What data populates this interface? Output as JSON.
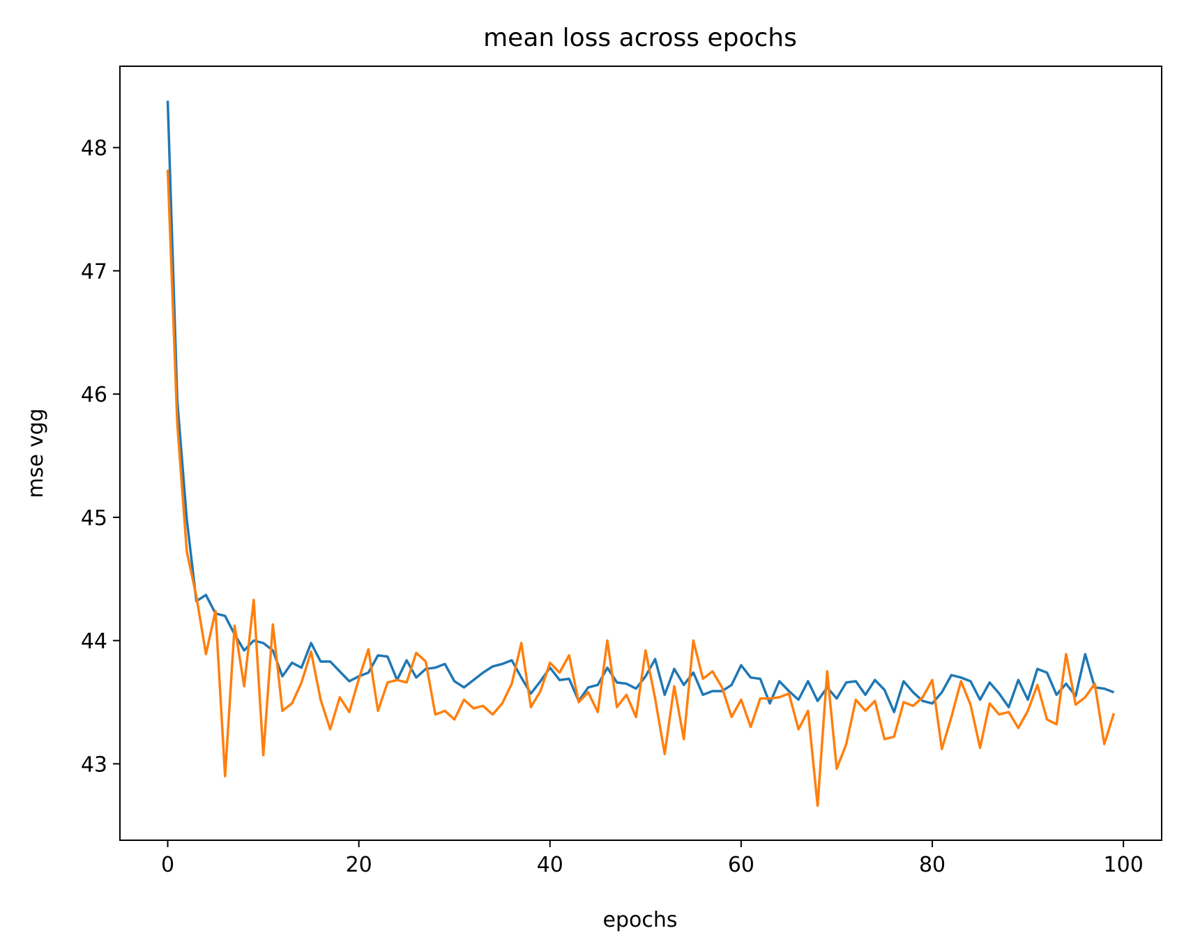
{
  "chart_data": {
    "type": "line",
    "title": "mean loss across epochs",
    "xlabel": "epochs",
    "ylabel": "mse vgg",
    "xlim": [
      -5,
      104
    ],
    "ylim": [
      42.38,
      48.66
    ],
    "xticks": [
      0,
      20,
      40,
      60,
      80,
      100
    ],
    "yticks": [
      43,
      44,
      45,
      46,
      47,
      48
    ],
    "grid": false,
    "colors": {
      "series_1": "#1f77b4",
      "series_2": "#ff7f0e"
    },
    "series": [
      {
        "values": [
          48.38,
          45.95,
          44.98,
          44.32,
          44.37,
          44.22,
          44.2,
          44.05,
          43.92,
          44.0,
          43.98,
          43.92,
          43.71,
          43.82,
          43.78,
          43.98,
          43.83,
          43.83,
          43.75,
          43.67,
          43.71,
          43.74,
          43.88,
          43.87,
          43.68,
          43.84,
          43.7,
          43.77,
          43.78,
          43.81,
          43.67,
          43.62,
          43.68,
          43.74,
          43.79,
          43.81,
          43.84,
          43.7,
          43.57,
          43.67,
          43.78,
          43.68,
          43.69,
          43.51,
          43.62,
          43.64,
          43.78,
          43.66,
          43.65,
          43.61,
          43.71,
          43.85,
          43.56,
          43.77,
          43.64,
          43.74,
          43.56,
          43.59,
          43.59,
          43.64,
          43.8,
          43.7,
          43.69,
          43.49,
          43.67,
          43.59,
          43.52,
          43.67,
          43.51,
          43.62,
          43.53,
          43.66,
          43.67,
          43.56,
          43.68,
          43.6,
          43.42,
          43.67,
          43.58,
          43.51,
          43.49,
          43.58,
          43.72,
          43.7,
          43.67,
          43.52,
          43.66,
          43.57,
          43.46,
          43.68,
          43.52,
          43.77,
          43.74,
          43.56,
          43.65,
          43.55,
          43.89,
          43.62,
          43.61,
          43.58
        ]
      },
      {
        "values": [
          47.82,
          45.76,
          44.72,
          44.36,
          43.89,
          44.24,
          42.9,
          44.12,
          43.63,
          44.33,
          43.07,
          44.13,
          43.43,
          43.49,
          43.66,
          43.91,
          43.52,
          43.28,
          43.54,
          43.42,
          43.69,
          43.93,
          43.43,
          43.66,
          43.68,
          43.66,
          43.9,
          43.83,
          43.4,
          43.43,
          43.36,
          43.52,
          43.45,
          43.47,
          43.4,
          43.49,
          43.65,
          43.98,
          43.46,
          43.59,
          43.82,
          43.74,
          43.88,
          43.5,
          43.58,
          43.42,
          44.0,
          43.46,
          43.56,
          43.38,
          43.92,
          43.53,
          43.08,
          43.63,
          43.2,
          44.0,
          43.69,
          43.75,
          43.62,
          43.38,
          43.52,
          43.3,
          43.53,
          43.53,
          43.54,
          43.57,
          43.28,
          43.43,
          42.66,
          43.75,
          42.96,
          43.16,
          43.52,
          43.43,
          43.51,
          43.2,
          43.22,
          43.5,
          43.47,
          43.54,
          43.68,
          43.12,
          43.38,
          43.67,
          43.48,
          43.13,
          43.49,
          43.4,
          43.42,
          43.29,
          43.43,
          43.64,
          43.36,
          43.32,
          43.89,
          43.48,
          43.54,
          43.65,
          43.16,
          43.41
        ]
      }
    ]
  }
}
